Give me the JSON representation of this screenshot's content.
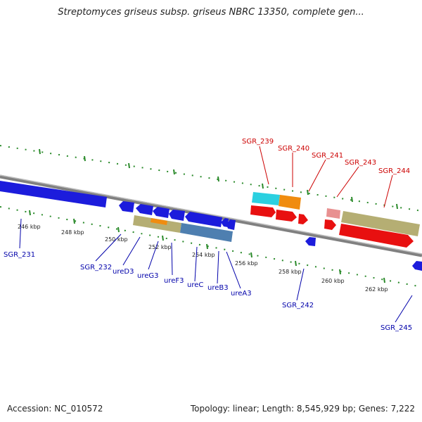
{
  "title": "Streptomyces griseus subsp. griseus NBRC 13350, complete gen...",
  "footer": {
    "accession": "Accession: NC_010572",
    "summary": "Topology: linear; Length: 8,545,929 bp; Genes: 7,222"
  },
  "colors": {
    "backbone": "#808080",
    "ruler_tick": "#2a8a2a",
    "plus_label": "#cc0000",
    "minus_label": "#0000aa",
    "gene_blue": "#1c1cdc",
    "gene_red": "#e81010",
    "gene_tan": "#b5ae73",
    "gene_cyan": "#2bd0e0",
    "gene_orange": "#f08c10",
    "gene_steel": "#4e7fb0",
    "gene_pink": "#e89090"
  },
  "ruler_ticks": [
    "246 kbp",
    "248 kbp",
    "250 kbp",
    "252 kbp",
    "254 kbp",
    "256 kbp",
    "258 kbp",
    "260 kbp",
    "262 kbp"
  ],
  "plus_genes": [
    "SGR_239",
    "SGR_240",
    "SGR_241",
    "SGR_243",
    "SGR_244"
  ],
  "minus_genes": [
    "SGR_231",
    "SGR_232",
    "ureD3",
    "ureG3",
    "ureF3",
    "ureC",
    "ureB3",
    "ureA3",
    "SGR_242",
    "SGR_245"
  ]
}
